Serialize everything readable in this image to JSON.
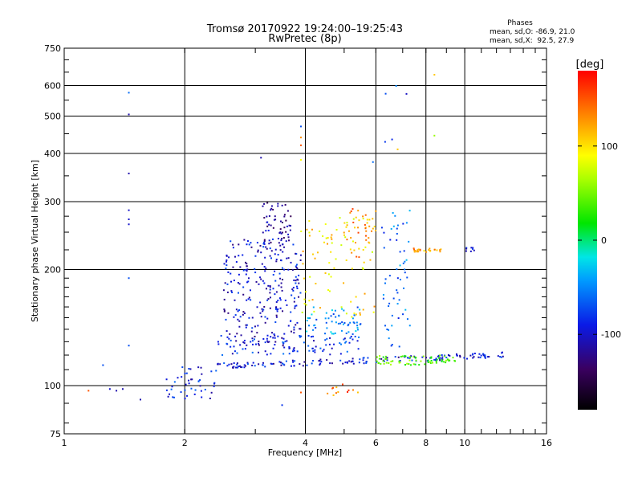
{
  "chart_data": {
    "type": "scatter",
    "title": "Tromsø 20170922 19:24:00–19:25:43",
    "subtitle": "RwPretec (8p)",
    "xlabel": "Frequency [MHz]",
    "ylabel": "Stationary phase Virtual Height [km]",
    "xscale": "log",
    "yscale": "log",
    "xlim": [
      1,
      16
    ],
    "ylim": [
      75,
      750
    ],
    "x_ticks": [
      1,
      2,
      4,
      6,
      8,
      10,
      16
    ],
    "x_tick_labels": [
      "1",
      "2",
      "4",
      "6",
      "8",
      "10",
      "16"
    ],
    "y_ticks": [
      75,
      100,
      200,
      300,
      400,
      500,
      600,
      750
    ],
    "y_tick_labels": [
      "75",
      "100",
      "200",
      "300",
      "400",
      "500",
      "600",
      "750"
    ],
    "grid": true,
    "stats": {
      "heading": "Phases",
      "line1": "mean, sd,O: -86.9, 21.0",
      "line2": "mean, sd,X:  92.5, 27.9"
    },
    "colorbar": {
      "label": "[deg]",
      "min": -180,
      "max": 180,
      "ticks": [
        100,
        0,
        -100
      ],
      "tick_labels": [
        "100",
        "0",
        "-100"
      ]
    },
    "clusters": [
      {
        "name": "trace-o-lower",
        "x_range": [
          2.3,
          12.5
        ],
        "y_range": [
          110,
          122
        ],
        "phase": -95,
        "count": 160
      },
      {
        "name": "trace-o-mid",
        "x_range": [
          2.4,
          5.5
        ],
        "y_range": [
          120,
          135
        ],
        "phase": -85,
        "count": 90
      },
      {
        "name": "spread-f-main",
        "x_range": [
          2.5,
          3.9
        ],
        "y_range": [
          125,
          240
        ],
        "phase": -100,
        "count": 260
      },
      {
        "name": "spread-f-upper",
        "x_range": [
          3.1,
          3.7
        ],
        "y_range": [
          230,
          300
        ],
        "phase": -115,
        "count": 60
      },
      {
        "name": "e-layer-low",
        "x_range": [
          1.8,
          2.4
        ],
        "y_range": [
          92,
          112
        ],
        "phase": -90,
        "count": 45
      },
      {
        "name": "x-trace-cyan",
        "x_range": [
          4.0,
          5.5
        ],
        "y_range": [
          135,
          160
        ],
        "phase": -50,
        "count": 60
      },
      {
        "name": "x-trace-green",
        "x_range": [
          6.0,
          9.5
        ],
        "y_range": [
          113,
          120
        ],
        "phase": 40,
        "count": 70
      },
      {
        "name": "x-trace-yellow",
        "x_range": [
          3.9,
          6.0
        ],
        "y_range": [
          150,
          280
        ],
        "phase": 100,
        "count": 90
      },
      {
        "name": "x-high-orange",
        "x_range": [
          5.0,
          6.0
        ],
        "y_range": [
          210,
          290
        ],
        "phase": 130,
        "count": 30
      },
      {
        "name": "upper-band-7-8",
        "x_range": [
          7.3,
          8.8
        ],
        "y_range": [
          222,
          228
        ],
        "phase": 120,
        "count": 25
      },
      {
        "name": "upper-band-10",
        "x_range": [
          10.0,
          10.8
        ],
        "y_range": [
          222,
          228
        ],
        "phase": -90,
        "count": 8
      },
      {
        "name": "mixed-6-7",
        "x_range": [
          6.2,
          7.3
        ],
        "y_range": [
          125,
          290
        ],
        "phase": -60,
        "count": 55
      },
      {
        "name": "low-orange",
        "x_range": [
          4.5,
          5.8
        ],
        "y_range": [
          94,
          102
        ],
        "phase": 140,
        "count": 12
      },
      {
        "name": "high-blue-sparse",
        "x_range": [
          6.2,
          7.2
        ],
        "y_range": [
          400,
          620
        ],
        "phase": -80,
        "count": 5
      }
    ],
    "isolated_points": [
      {
        "x": 1.45,
        "y": 575,
        "phase": -60
      },
      {
        "x": 1.45,
        "y": 505,
        "phase": -110
      },
      {
        "x": 1.45,
        "y": 355,
        "phase": -110
      },
      {
        "x": 1.45,
        "y": 285,
        "phase": -100
      },
      {
        "x": 1.45,
        "y": 270,
        "phase": -100
      },
      {
        "x": 1.45,
        "y": 262,
        "phase": -100
      },
      {
        "x": 1.45,
        "y": 190,
        "phase": -70
      },
      {
        "x": 1.45,
        "y": 127,
        "phase": -70
      },
      {
        "x": 1.25,
        "y": 113,
        "phase": -70
      },
      {
        "x": 1.3,
        "y": 98,
        "phase": -100
      },
      {
        "x": 1.35,
        "y": 97,
        "phase": -110
      },
      {
        "x": 1.4,
        "y": 98,
        "phase": -110
      },
      {
        "x": 1.15,
        "y": 97,
        "phase": 150
      },
      {
        "x": 3.1,
        "y": 390,
        "phase": -110
      },
      {
        "x": 3.9,
        "y": 470,
        "phase": -70
      },
      {
        "x": 3.9,
        "y": 440,
        "phase": 130
      },
      {
        "x": 3.9,
        "y": 420,
        "phase": 150
      },
      {
        "x": 3.9,
        "y": 385,
        "phase": 90
      },
      {
        "x": 5.9,
        "y": 380,
        "phase": -60
      },
      {
        "x": 6.8,
        "y": 410,
        "phase": 110
      },
      {
        "x": 8.4,
        "y": 640,
        "phase": 110
      },
      {
        "x": 8.4,
        "y": 445,
        "phase": 60
      },
      {
        "x": 3.9,
        "y": 96,
        "phase": 150
      },
      {
        "x": 3.5,
        "y": 89,
        "phase": -80
      },
      {
        "x": 1.55,
        "y": 92,
        "phase": -110
      }
    ]
  }
}
